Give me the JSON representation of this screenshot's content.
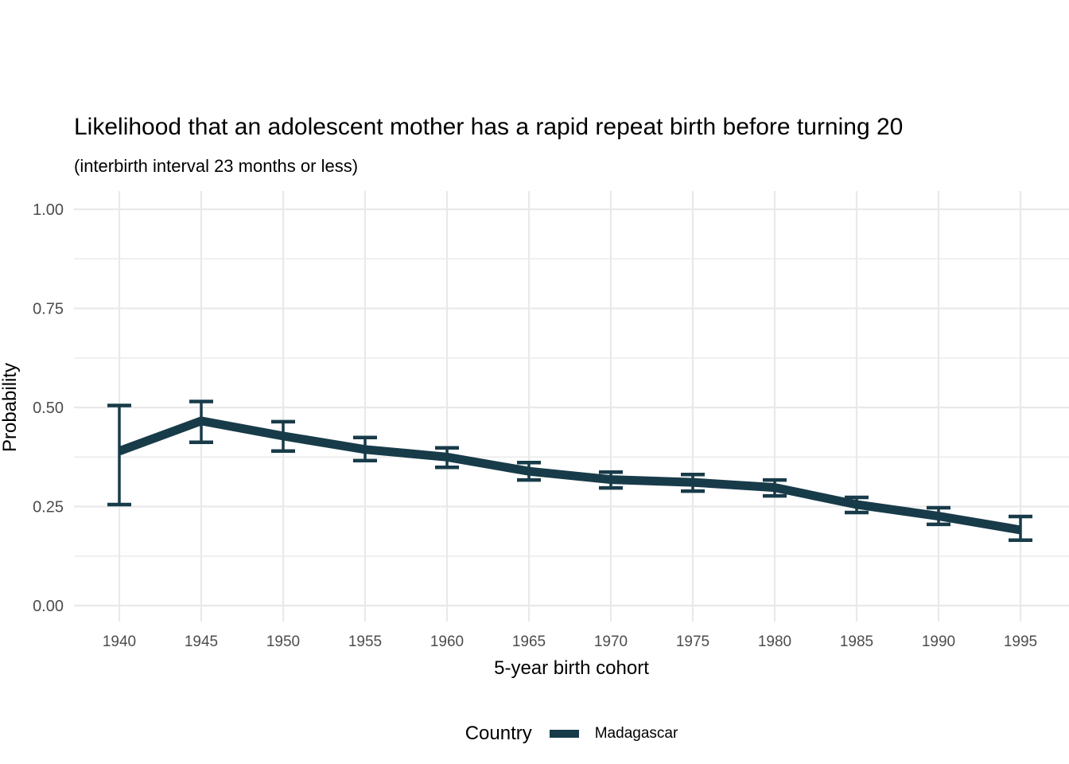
{
  "chart_data": {
    "type": "line",
    "title": "Likelihood that an adolescent mother has a rapid repeat birth before turning 20",
    "subtitle": "(interbirth interval 23 months or less)",
    "xlabel": "5-year birth cohort",
    "ylabel": "Probability",
    "categories": [
      "1940",
      "1945",
      "1950",
      "1955",
      "1960",
      "1965",
      "1970",
      "1975",
      "1980",
      "1985",
      "1990",
      "1995"
    ],
    "series": [
      {
        "name": "Madagascar",
        "values": [
          0.39,
          0.466,
          0.428,
          0.394,
          0.375,
          0.339,
          0.318,
          0.311,
          0.298,
          0.255,
          0.226,
          0.191
        ],
        "ci_lower": [
          0.255,
          0.412,
          0.39,
          0.366,
          0.349,
          0.317,
          0.297,
          0.289,
          0.277,
          0.235,
          0.205,
          0.165
        ],
        "ci_upper": [
          0.505,
          0.515,
          0.464,
          0.424,
          0.398,
          0.361,
          0.337,
          0.331,
          0.317,
          0.273,
          0.247,
          0.225
        ]
      }
    ],
    "error_bars": true,
    "ylim": [
      0,
      1
    ],
    "y_ticks": [
      0,
      0.25,
      0.5,
      0.75,
      1
    ],
    "y_tick_labels": [
      "0.00",
      "0.25",
      "0.50",
      "0.75",
      "1.00"
    ],
    "y_minor_ticks": [
      0.125,
      0.375,
      0.625,
      0.875
    ],
    "grid": "horizontal major+minor, vertical major only",
    "legend": {
      "title": "Country",
      "position": "bottom",
      "entries": [
        "Madagascar"
      ]
    },
    "colors": {
      "line": "#183B49",
      "gridline": "#E9E9E9",
      "tick_text": "#4D4D4D",
      "text": "#000000",
      "background": "#FFFFFF"
    }
  }
}
